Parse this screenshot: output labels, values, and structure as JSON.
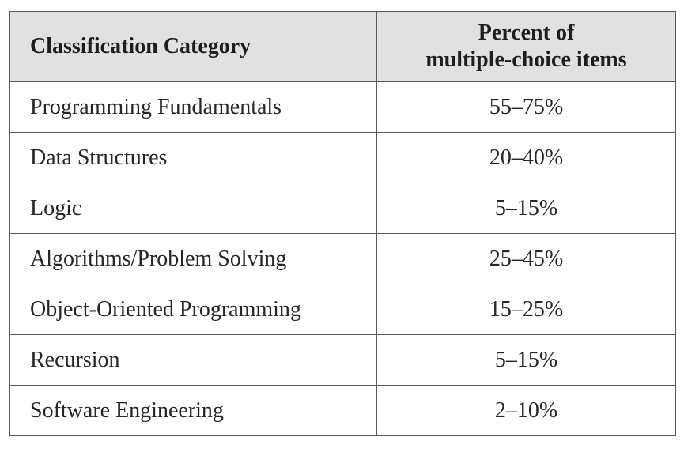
{
  "table": {
    "headers": {
      "category": "Classification Category",
      "percent_line1": "Percent of",
      "percent_line2": "multiple-choice items"
    },
    "rows": [
      {
        "category": "Programming Fundamentals",
        "percent": "55–75%"
      },
      {
        "category": "Data Structures",
        "percent": "20–40%"
      },
      {
        "category": "Logic",
        "percent": "5–15%"
      },
      {
        "category": "Algorithms/Problem Solving",
        "percent": "25–45%"
      },
      {
        "category": "Object-Oriented Programming",
        "percent": "15–25%"
      },
      {
        "category": "Recursion",
        "percent": "5–15%"
      },
      {
        "category": "Software Engineering",
        "percent": "2–10%"
      }
    ]
  }
}
